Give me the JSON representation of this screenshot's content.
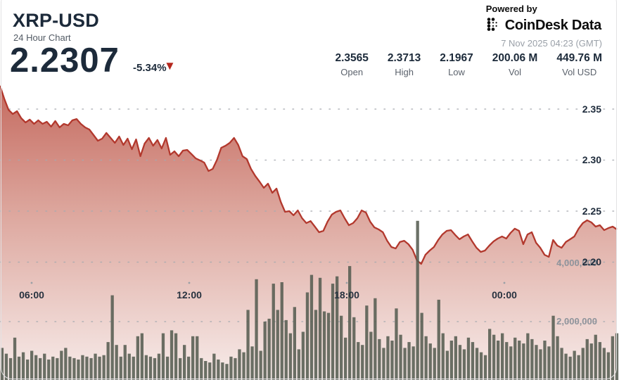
{
  "header": {
    "title": "XRP-USD",
    "subtitle": "24 Hour Chart",
    "price": "2.2307",
    "change": "-5.34%",
    "change_direction": "down",
    "arrow_glyph": "▼"
  },
  "branding": {
    "powered_by": "Powered by",
    "brand_name": "CoinDesk Data",
    "timestamp": "7 Nov 2025 04:23 (GMT)"
  },
  "stats": [
    {
      "value": "2.3565",
      "label": "Open"
    },
    {
      "value": "2.3713",
      "label": "High"
    },
    {
      "value": "2.1967",
      "label": "Low"
    },
    {
      "value": "200.06 M",
      "label": "Vol"
    },
    {
      "value": "449.76 M",
      "label": "Vol USD"
    }
  ],
  "colors": {
    "line_red": "#b2382d",
    "fill_top": "#c3665b",
    "fill_mid": "#dda79e",
    "fill_bottom": "#f7ecea",
    "bar": "#575d52",
    "navy": "#1c2a3a",
    "arrow_red": "#b5271d"
  },
  "chart_data": {
    "type": "area",
    "title": "XRP-USD 24 Hour Chart",
    "x_time_labels": [
      "06:00",
      "12:00",
      "18:00",
      "00:00"
    ],
    "price_axis": {
      "side": "right",
      "tick_values": [
        2.35,
        2.3,
        2.25,
        2.2
      ],
      "tick_labels": [
        "2.35",
        "2.30",
        "2.25",
        "2.20"
      ],
      "range": [
        2.19,
        2.38
      ]
    },
    "volume_axis": {
      "side": "right",
      "tick_values": [
        4000000,
        2000000
      ],
      "tick_labels": [
        "4,000,000",
        "2,000,000"
      ]
    },
    "grid": "dotted",
    "open": 2.3565,
    "high": 2.3713,
    "low": 2.1967,
    "last": 2.2307,
    "price_series": [
      2.3728,
      2.3603,
      2.3493,
      2.3452,
      2.3479,
      2.341,
      2.3369,
      2.3397,
      2.3355,
      2.339,
      2.3355,
      2.3376,
      2.3328,
      2.3383,
      2.3321,
      2.3355,
      2.3341,
      2.339,
      2.3403,
      2.3355,
      2.3321,
      2.33,
      2.3245,
      2.319,
      2.321,
      2.3266,
      2.3217,
      2.3169,
      2.3231,
      2.3148,
      2.321,
      2.3107,
      2.3203,
      2.3038,
      2.3162,
      2.3217,
      2.3141,
      2.3197,
      2.3114,
      2.3217,
      2.3052,
      2.3086,
      2.3038,
      2.3093,
      2.31,
      2.3059,
      2.3017,
      2.2997,
      2.2976,
      2.2893,
      2.2914,
      2.3003,
      2.3121,
      2.3141,
      2.3169,
      2.3217,
      2.3148,
      2.3038,
      2.301,
      2.2914,
      2.2845,
      2.279,
      2.2728,
      2.2769,
      2.2679,
      2.2721,
      2.259,
      2.2493,
      2.25,
      2.2459,
      2.2507,
      2.2431,
      2.2383,
      2.2403,
      2.2348,
      2.2293,
      2.2307,
      2.2397,
      2.2466,
      2.2493,
      2.2507,
      2.2431,
      2.2362,
      2.2383,
      2.2431,
      2.2507,
      2.2486,
      2.2397,
      2.2341,
      2.2321,
      2.2293,
      2.221,
      2.2148,
      2.2134,
      2.2197,
      2.221,
      2.2176,
      2.2121,
      2.2017,
      2.1983,
      2.2072,
      2.2114,
      2.2148,
      2.2217,
      2.2272,
      2.2307,
      2.2314,
      2.2266,
      2.2224,
      2.2252,
      2.2272,
      2.2203,
      2.2141,
      2.21,
      2.2114,
      2.2162,
      2.2203,
      2.2231,
      2.2252,
      2.2231,
      2.2286,
      2.2328,
      2.2307,
      2.2176,
      2.2272,
      2.2293,
      2.219,
      2.2141,
      2.2072,
      2.2052,
      2.2217,
      2.2162,
      2.2141,
      2.2197,
      2.2224,
      2.2252,
      2.2328,
      2.2383,
      2.241,
      2.239,
      2.2348,
      2.2362,
      2.2314,
      2.2334,
      2.2348,
      2.2321
    ],
    "volume_series_millions": [
      1.1,
      0.9,
      0.75,
      1.45,
      0.8,
      0.95,
      0.7,
      1.0,
      0.85,
      0.75,
      0.9,
      0.7,
      0.8,
      0.75,
      1.0,
      1.1,
      0.8,
      0.75,
      0.7,
      0.85,
      0.8,
      0.75,
      0.9,
      0.8,
      0.85,
      1.3,
      2.9,
      1.2,
      0.8,
      1.2,
      0.9,
      0.8,
      1.5,
      1.6,
      0.85,
      0.8,
      0.75,
      0.9,
      1.6,
      0.8,
      1.7,
      1.6,
      0.75,
      1.2,
      0.8,
      1.5,
      1.5,
      0.75,
      0.65,
      0.6,
      0.9,
      0.7,
      0.6,
      0.55,
      0.8,
      0.75,
      1.05,
      0.95,
      2.4,
      1.15,
      3.45,
      1.0,
      2.0,
      2.1,
      3.3,
      2.4,
      3.35,
      2.05,
      1.6,
      2.5,
      1.05,
      1.65,
      3.0,
      3.6,
      2.4,
      3.5,
      2.35,
      2.3,
      3.3,
      3.55,
      2.2,
      1.45,
      3.9,
      2.15,
      1.3,
      1.2,
      2.55,
      1.65,
      2.8,
      1.4,
      1.1,
      1.5,
      1.35,
      2.45,
      1.55,
      1.1,
      1.3,
      1.15,
      5.45,
      2.3,
      1.5,
      1.25,
      1.1,
      2.75,
      1.6,
      1.0,
      1.35,
      1.5,
      1.2,
      1.05,
      1.45,
      1.3,
      1.1,
      0.95,
      0.85,
      1.75,
      1.55,
      1.35,
      1.6,
      1.3,
      1.15,
      1.45,
      1.35,
      1.25,
      1.6,
      1.4,
      1.2,
      1.05,
      1.35,
      1.15,
      2.2,
      1.5,
      1.1,
      0.9,
      0.8,
      1.0,
      0.85,
      1.1,
      1.4,
      1.25,
      1.55,
      1.3,
      1.1,
      0.95,
      1.5,
      1.6
    ]
  }
}
